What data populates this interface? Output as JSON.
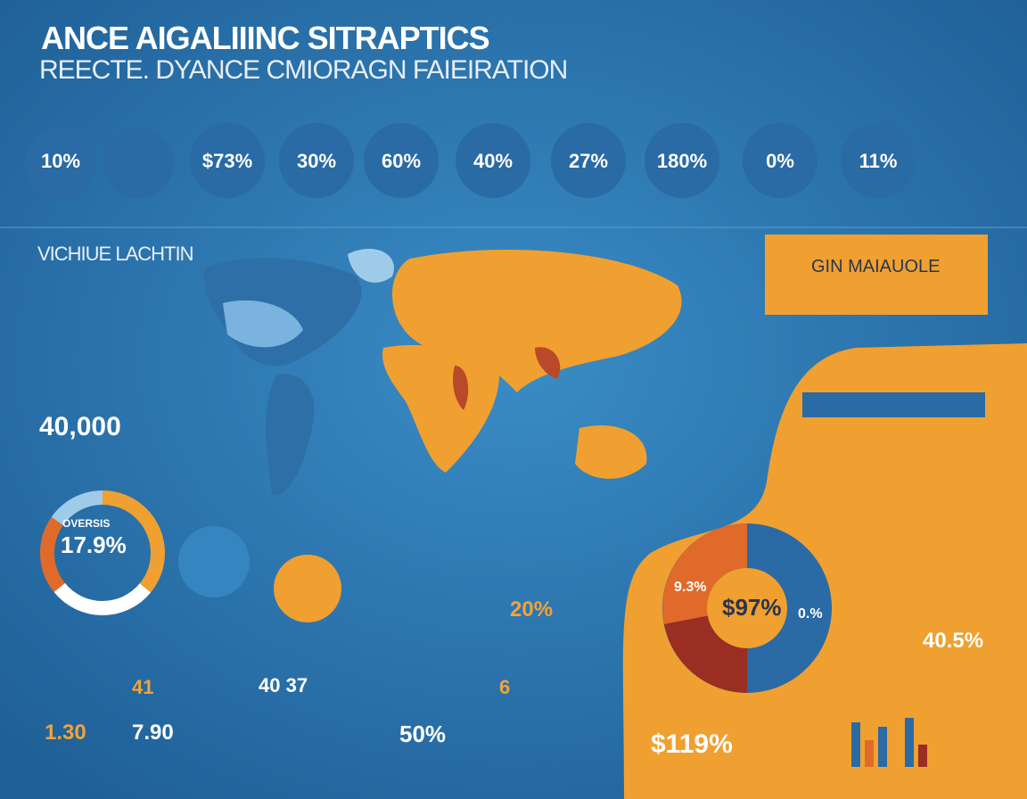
{
  "header": {
    "title": "ANCE AIGALIIINC SITRAPTICS",
    "subtitle": "REECTE. DYANCE CMIORAGN FAIEIRATION"
  },
  "stats": [
    "10%",
    "$73%",
    "30%",
    "60%",
    "40%",
    "27%",
    "180%",
    "0%",
    "11%"
  ],
  "map_title": "VICHIUE LACHTIN",
  "callouts": {
    "count": "40,000",
    "donut_label": "OVERSIS",
    "donut_value": "17.9%",
    "banner": "GIN MAIAUOLE",
    "pie_left": "9.3%",
    "pie_center": "$97%",
    "pie_right": "0.%",
    "mid_value": "20%",
    "right_value": "40.5%"
  },
  "bottom": [
    "41",
    "1.30",
    "40 37",
    "6",
    "7.90",
    "50%",
    "$119%"
  ]
}
